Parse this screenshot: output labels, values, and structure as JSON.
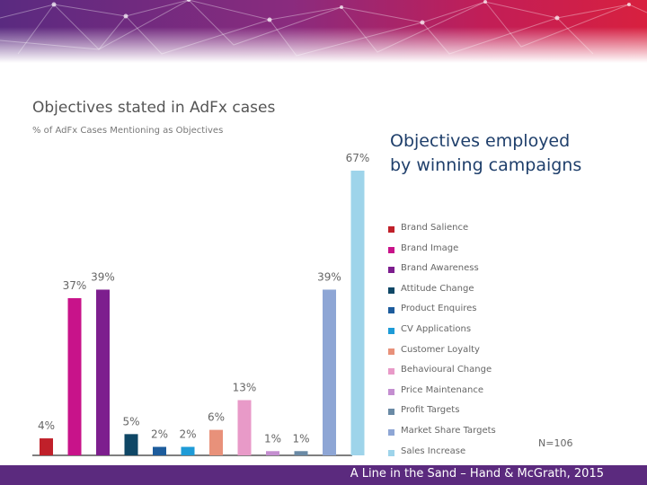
{
  "chart_data": {
    "type": "bar",
    "title": "Objectives stated in AdFx cases",
    "subtitle": "% of AdFx Cases Mentioning as Objectives",
    "categories": [
      "Brand Salience",
      "Brand Image",
      "Brand Awareness",
      "Attitude Change",
      "Product Enquires",
      "CV Applications",
      "Customer Loyalty",
      "Behavioural Change",
      "Price Maintenance",
      "Profit Targets",
      "Market Share Targets",
      "Sales Increase"
    ],
    "values": [
      4,
      37,
      39,
      5,
      2,
      2,
      6,
      13,
      1,
      1,
      39,
      67
    ],
    "value_labels": [
      "4%",
      "37%",
      "39%",
      "5%",
      "2%",
      "2%",
      "6%",
      "13%",
      "1%",
      "1%",
      "39%",
      "67%"
    ],
    "colors": [
      "#c0202a",
      "#c8138a",
      "#7d1e8e",
      "#0f4766",
      "#1d5c9c",
      "#1e9bd7",
      "#e8917a",
      "#e89ac8",
      "#c48ed0",
      "#6a8aa5",
      "#8ea6d5",
      "#9ed4ea"
    ],
    "ylim": [
      0,
      75
    ],
    "xlabel": "",
    "ylabel": "",
    "legend_position": "right"
  },
  "side_heading": [
    "Objectives employed",
    "by winning campaigns"
  ],
  "n_label": "N=106",
  "footer": "A Line in the Sand – Hand & McGrath, 2015",
  "accent_color": "#5b2a7e"
}
